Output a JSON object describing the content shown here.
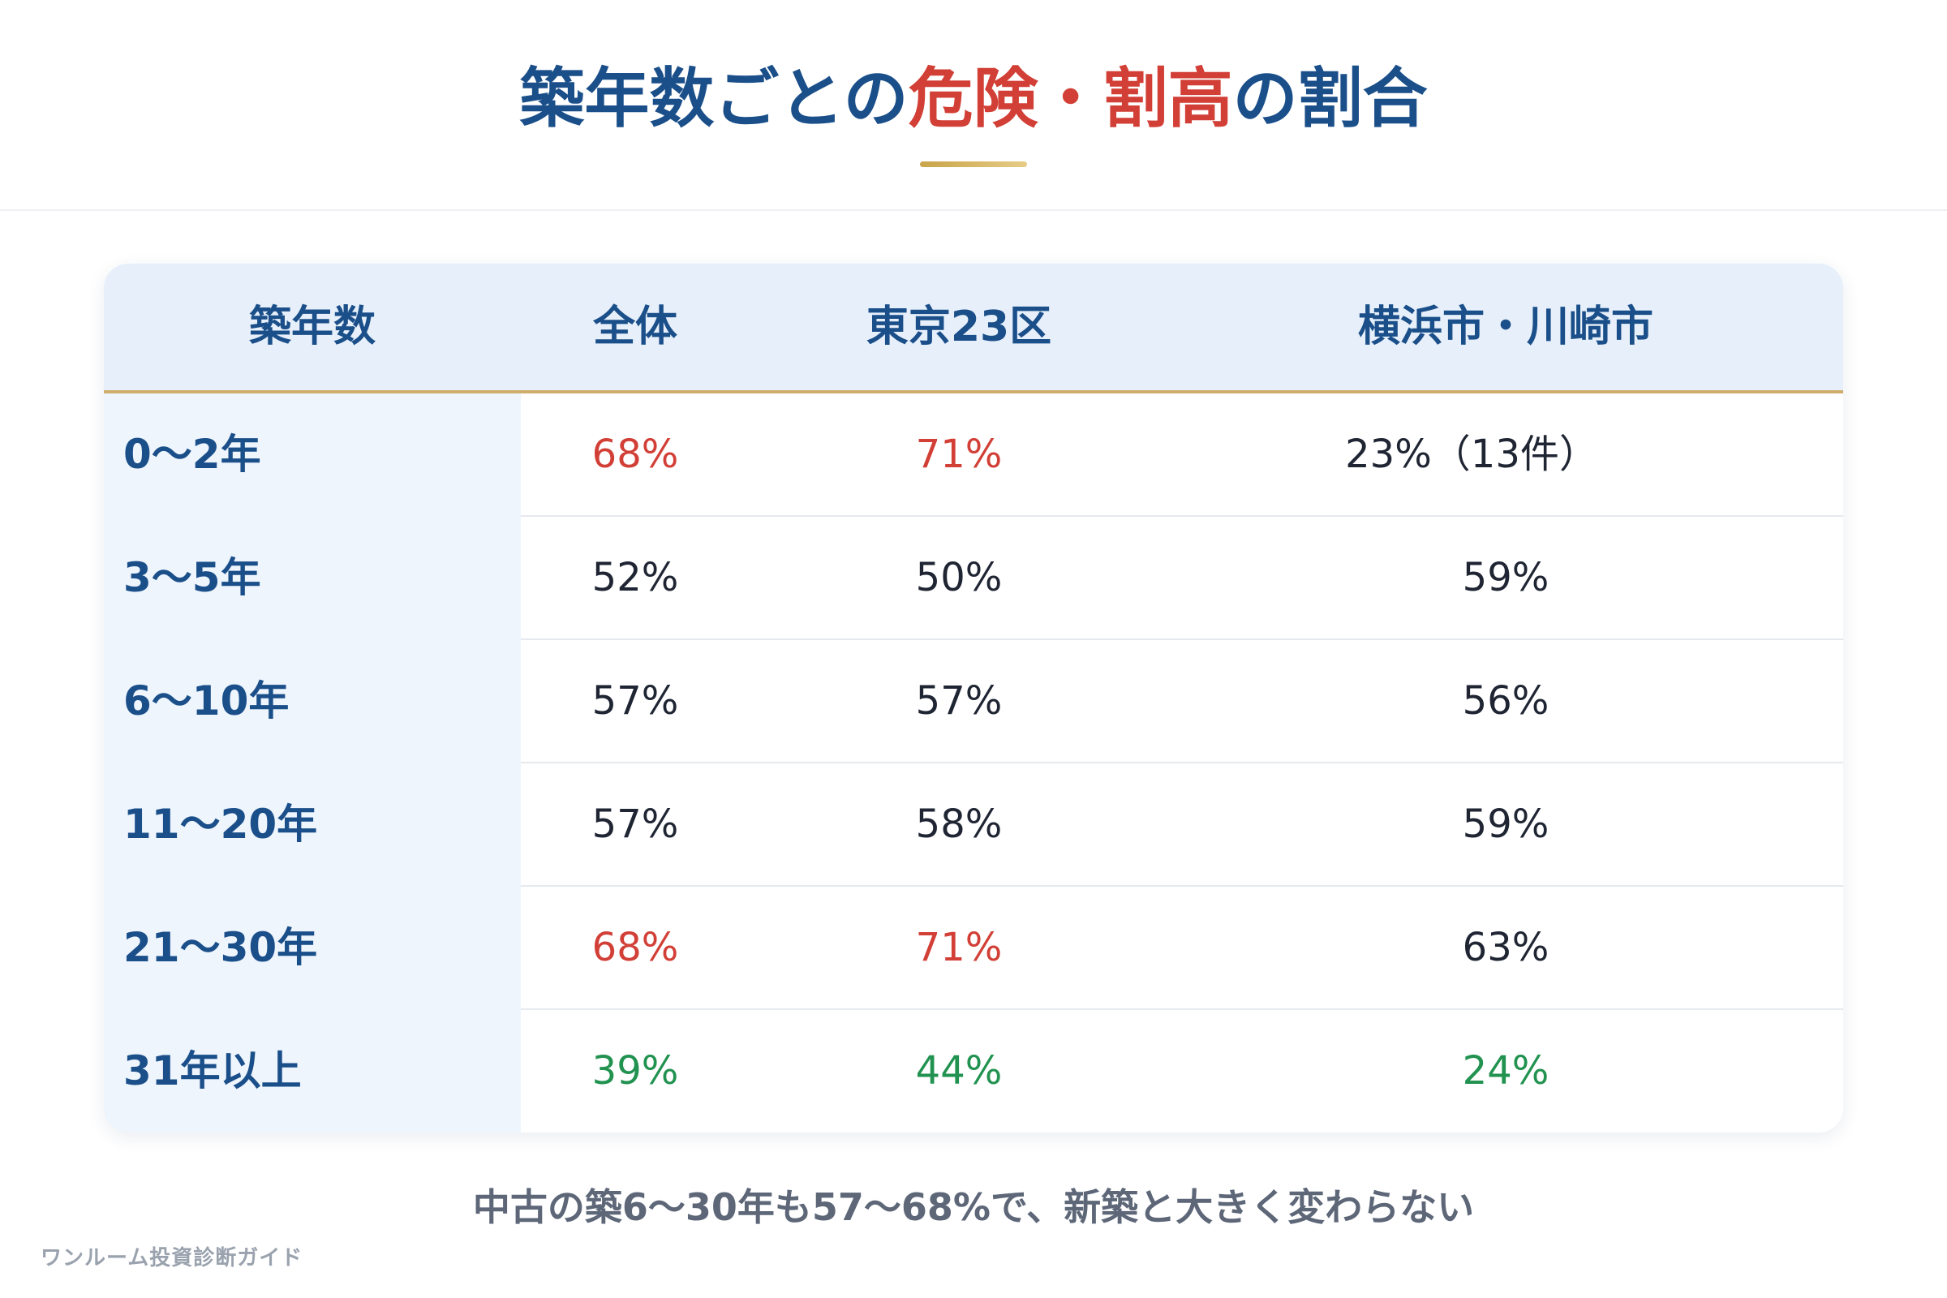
{
  "title": {
    "part1": "築年数ごとの",
    "part2": "危険",
    "part3": "・",
    "part4": "割高",
    "part5": "の割合"
  },
  "colors": {
    "primary": "#1b4f8a",
    "risk": "#d23f36",
    "safe": "#21924f",
    "normal": "#1f2533",
    "accent_gold": "#cfae6d",
    "header_bg": "#e7f0fa"
  },
  "chart_data": {
    "type": "table",
    "title": "築年数ごとの危険・割高の割合",
    "columns": [
      "築年数",
      "全体",
      "東京23区",
      "横浜市・川崎市"
    ],
    "rows": [
      {
        "label": "0〜2年",
        "values": [
          "68%",
          "71%",
          "23%（13件）"
        ],
        "status": [
          "risk",
          "risk",
          "normal"
        ]
      },
      {
        "label": "3〜5年",
        "values": [
          "52%",
          "50%",
          "59%"
        ],
        "status": [
          "normal",
          "normal",
          "normal"
        ]
      },
      {
        "label": "6〜10年",
        "values": [
          "57%",
          "57%",
          "56%"
        ],
        "status": [
          "normal",
          "normal",
          "normal"
        ]
      },
      {
        "label": "11〜20年",
        "values": [
          "57%",
          "58%",
          "59%"
        ],
        "status": [
          "normal",
          "normal",
          "normal"
        ]
      },
      {
        "label": "21〜30年",
        "values": [
          "68%",
          "71%",
          "63%"
        ],
        "status": [
          "risk",
          "risk",
          "normal"
        ]
      },
      {
        "label": "31年以上",
        "values": [
          "39%",
          "44%",
          "24%"
        ],
        "status": [
          "safe",
          "safe",
          "safe"
        ]
      }
    ]
  },
  "footnote": "中古の築6〜30年も57〜68%で、新築と大きく変わらない",
  "brand": "ワンルーム投資診断ガイド"
}
